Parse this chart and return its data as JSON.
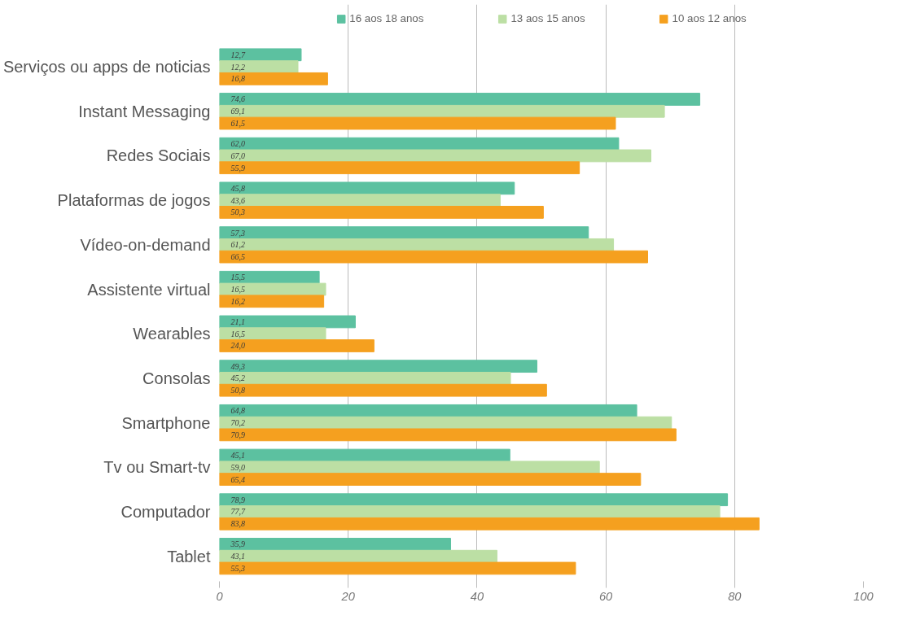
{
  "chart_data": {
    "type": "bar",
    "orientation": "horizontal",
    "categories": [
      "Serviços ou apps de noticias",
      "Instant Messaging",
      "Redes Sociais",
      "Plataformas de jogos",
      "Vídeo-on-demand",
      "Assistente virtual",
      "Wearables",
      "Consolas",
      "Smartphone",
      "Tv ou Smart-tv",
      "Computador",
      "Tablet"
    ],
    "series": [
      {
        "name": "16 aos 18 anos",
        "color": "#5cc1a0",
        "values": [
          12.7,
          74.6,
          62.0,
          45.8,
          57.3,
          15.5,
          21.1,
          49.3,
          64.8,
          45.1,
          78.9,
          35.9
        ],
        "value_labels": [
          "12,7",
          "74,6",
          "62,0",
          "45,8",
          "57,3",
          "15,5",
          "21,1",
          "49,3",
          "64,8",
          "45,1",
          "78,9",
          "35,9"
        ]
      },
      {
        "name": "13 aos 15 anos",
        "color": "#bcdfa4",
        "values": [
          12.2,
          69.1,
          67.0,
          43.6,
          61.2,
          16.5,
          16.5,
          45.2,
          70.2,
          59.0,
          77.7,
          43.1
        ],
        "value_labels": [
          "12,2",
          "69,1",
          "67,0",
          "43,6",
          "61,2",
          "16,5",
          "16,5",
          "45,2",
          "70,2",
          "59,0",
          "77,7",
          "43,1"
        ]
      },
      {
        "name": "10 aos 12 anos",
        "color": "#f5a01f",
        "values": [
          16.8,
          61.5,
          55.9,
          50.3,
          66.5,
          16.2,
          24.0,
          50.8,
          70.9,
          65.4,
          83.8,
          55.3
        ],
        "value_labels": [
          "16,8",
          "61,5",
          "55,9",
          "50,3",
          "66,5",
          "16,2",
          "24,0",
          "50,8",
          "70,9",
          "65,4",
          "83,8",
          "55,3"
        ]
      }
    ],
    "xlim": [
      0,
      100
    ],
    "xticks": [
      0,
      20,
      40,
      60,
      80,
      100
    ],
    "grid": "x",
    "legend": "top"
  }
}
